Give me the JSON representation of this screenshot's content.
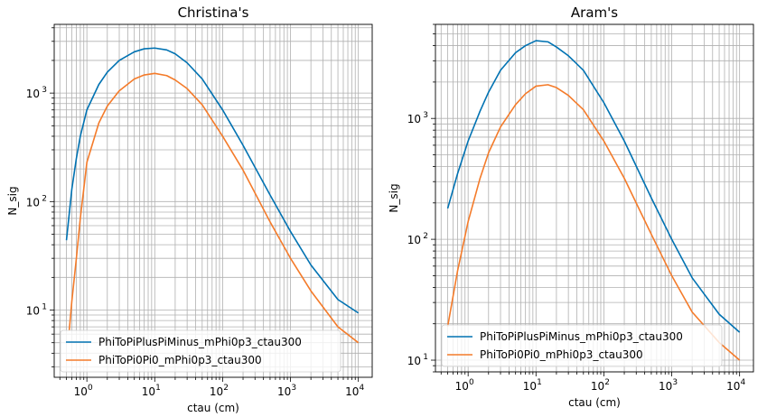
{
  "chart_data": [
    {
      "type": "line",
      "title": "Christina's",
      "xlabel": "ctau (cm)",
      "ylabel": "N_sig",
      "xscale": "log",
      "yscale": "log",
      "xlim": [
        0.33,
        16000
      ],
      "ylim": [
        2.4,
        4300
      ],
      "xticks": [
        {
          "label": "10",
          "exp": "0",
          "value": 1
        },
        {
          "label": "10",
          "exp": "1",
          "value": 10
        },
        {
          "label": "10",
          "exp": "2",
          "value": 100
        },
        {
          "label": "10",
          "exp": "3",
          "value": 1000
        },
        {
          "label": "10",
          "exp": "4",
          "value": 10000
        }
      ],
      "yticks": [
        {
          "label": "10",
          "exp": "1",
          "value": 10
        },
        {
          "label": "10",
          "exp": "2",
          "value": 100
        },
        {
          "label": "10",
          "exp": "3",
          "value": 1000
        }
      ],
      "grid": true,
      "legend_position": "lower-left",
      "series": [
        {
          "name": "PhiToPiPlusPiMinus_mPhi0p3_ctau300",
          "color": "#0072b2",
          "x": [
            0.5,
            0.6,
            0.7,
            0.8,
            1,
            1.5,
            2,
            3,
            5,
            7,
            10,
            15,
            20,
            30,
            50,
            100,
            200,
            500,
            1000,
            2000,
            5000,
            10000
          ],
          "y": [
            44,
            130,
            250,
            400,
            700,
            1200,
            1560,
            2000,
            2400,
            2560,
            2600,
            2500,
            2300,
            1900,
            1350,
            700,
            330,
            115,
            53,
            26,
            12.5,
            9.4
          ]
        },
        {
          "name": "PhiToPi0Pi0_mPhi0p3_ctau300",
          "color": "#f47b2a",
          "x": [
            0.55,
            0.6,
            0.7,
            0.8,
            1,
            1.5,
            2,
            3,
            5,
            7,
            10,
            15,
            20,
            30,
            50,
            100,
            200,
            500,
            1000,
            2000,
            5000,
            10000
          ],
          "y": [
            6.5,
            12,
            30,
            70,
            230,
            530,
            760,
            1050,
            1350,
            1470,
            1520,
            1450,
            1320,
            1100,
            780,
            400,
            195,
            65,
            30,
            15,
            7,
            5
          ]
        }
      ]
    },
    {
      "type": "line",
      "title": "Aram's",
      "xlabel": "ctau (cm)",
      "ylabel": "N_sig",
      "xscale": "log",
      "yscale": "log",
      "xlim": [
        0.33,
        16000
      ],
      "ylim": [
        8,
        6000
      ],
      "xticks": [
        {
          "label": "10",
          "exp": "0",
          "value": 1
        },
        {
          "label": "10",
          "exp": "1",
          "value": 10
        },
        {
          "label": "10",
          "exp": "2",
          "value": 100
        },
        {
          "label": "10",
          "exp": "3",
          "value": 1000
        },
        {
          "label": "10",
          "exp": "4",
          "value": 10000
        }
      ],
      "yticks": [
        {
          "label": "10",
          "exp": "1",
          "value": 10
        },
        {
          "label": "10",
          "exp": "2",
          "value": 100
        },
        {
          "label": "10",
          "exp": "3",
          "value": 1000
        }
      ],
      "grid": true,
      "legend_position": "lower-left",
      "series": [
        {
          "name": "PhiToPiPlusPiMinus_mPhi0p3_ctau300",
          "color": "#0072b2",
          "x": [
            0.5,
            0.7,
            1,
            1.5,
            2,
            3,
            5,
            7,
            10,
            15,
            20,
            30,
            50,
            100,
            200,
            500,
            1000,
            2000,
            5000,
            10000
          ],
          "y": [
            180,
            350,
            650,
            1150,
            1650,
            2500,
            3500,
            4000,
            4400,
            4300,
            3900,
            3300,
            2500,
            1350,
            650,
            220,
            100,
            48,
            24,
            17
          ]
        },
        {
          "name": "PhiToPi0Pi0_mPhi0p3_ctau300",
          "color": "#f47b2a",
          "x": [
            0.5,
            0.7,
            1,
            1.5,
            2,
            3,
            5,
            7,
            10,
            15,
            20,
            30,
            50,
            100,
            200,
            500,
            1000,
            2000,
            5000,
            10000
          ],
          "y": [
            19,
            55,
            140,
            320,
            520,
            850,
            1300,
            1600,
            1850,
            1900,
            1800,
            1550,
            1180,
            650,
            320,
            110,
            50,
            25,
            14,
            10
          ]
        }
      ]
    }
  ]
}
